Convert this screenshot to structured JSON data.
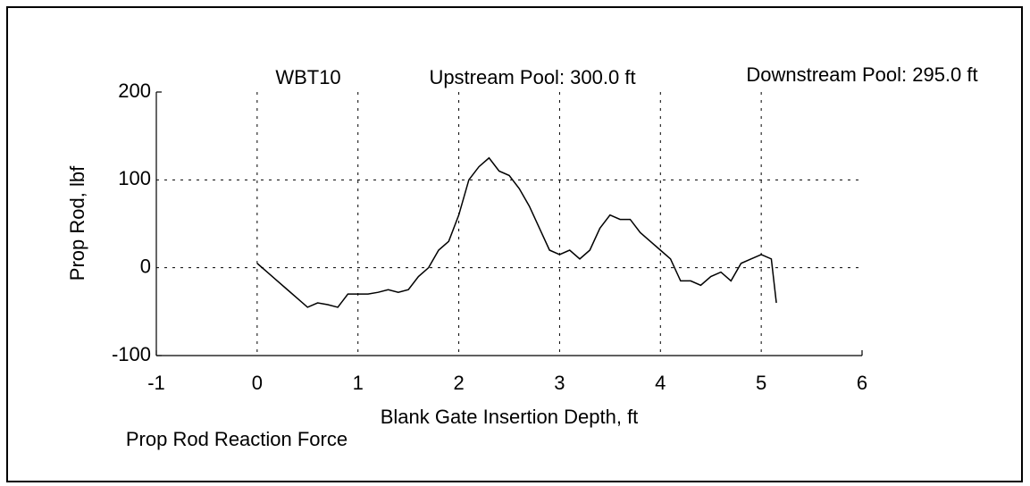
{
  "chart_data": {
    "type": "line",
    "annotations": [
      "WBT10",
      "Upstream Pool: 300.0 ft",
      "Downstream Pool: 295.0 ft"
    ],
    "xlabel": "Blank Gate Insertion Depth, ft",
    "ylabel": "Prop Rod, lbf",
    "caption": "Prop Rod Reaction Force",
    "x": [
      0,
      0.1,
      0.2,
      0.3,
      0.4,
      0.5,
      0.6,
      0.7,
      0.8,
      0.9,
      1.0,
      1.1,
      1.2,
      1.3,
      1.4,
      1.5,
      1.6,
      1.7,
      1.8,
      1.9,
      2.0,
      2.1,
      2.2,
      2.3,
      2.4,
      2.5,
      2.6,
      2.7,
      2.8,
      2.9,
      3.0,
      3.1,
      3.2,
      3.3,
      3.4,
      3.5,
      3.6,
      3.7,
      3.8,
      3.9,
      4.0,
      4.1,
      4.2,
      4.3,
      4.4,
      4.5,
      4.6,
      4.7,
      4.8,
      4.9,
      5.0,
      5.1,
      5.15
    ],
    "series": [
      {
        "color": "#000000",
        "values": [
          5,
          -5,
          -15,
          -25,
          -35,
          -45,
          -40,
          -42,
          -45,
          -30,
          -30,
          -30,
          -28,
          -25,
          -28,
          -25,
          -10,
          0,
          20,
          30,
          60,
          100,
          115,
          125,
          110,
          105,
          90,
          70,
          45,
          20,
          15,
          20,
          10,
          20,
          45,
          60,
          55,
          55,
          40,
          30,
          20,
          10,
          -15,
          -15,
          -20,
          -10,
          -5,
          -15,
          5,
          10,
          15,
          10,
          -40
        ]
      }
    ],
    "xlim": [
      -1,
      6
    ],
    "xticks": [
      -1,
      0,
      1,
      2,
      3,
      4,
      5,
      6
    ],
    "ylim": [
      -100,
      200
    ],
    "yticks": [
      -100,
      0,
      100,
      200
    ],
    "grid": true
  }
}
